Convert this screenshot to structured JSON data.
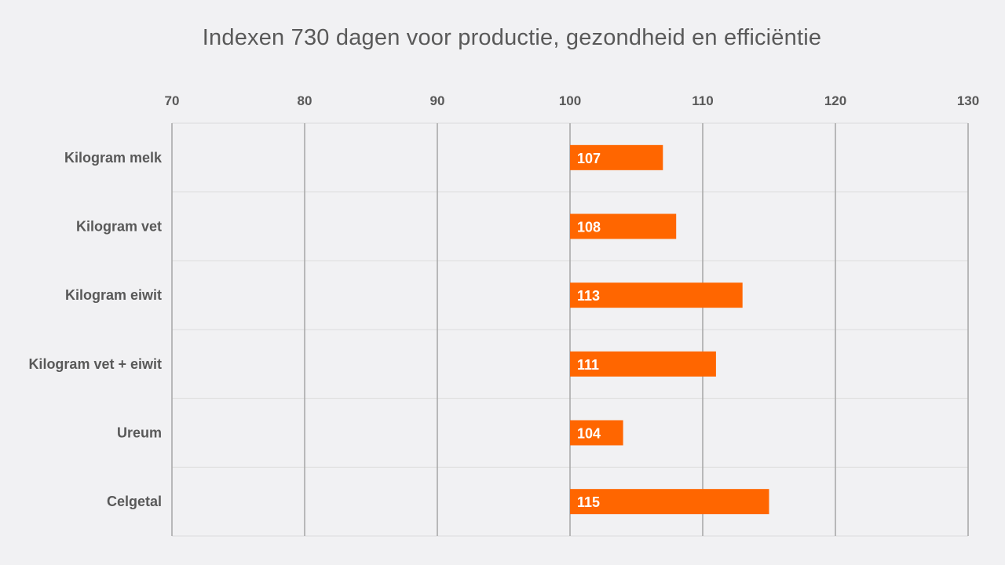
{
  "chart_data": {
    "type": "bar",
    "orientation": "horizontal",
    "title": "Indexen 730 dagen voor productie, gezondheid en efficiëntie",
    "xlabel": "",
    "ylabel": "",
    "xlim": [
      70,
      130
    ],
    "x_ticks": [
      "70",
      "80",
      "90",
      "100",
      "110",
      "120",
      "130"
    ],
    "axis_position": "top",
    "bar_origin": 100,
    "categories": [
      "Kilogram melk",
      "Kilogram vet",
      "Kilogram eiwit",
      "Kilogram vet + eiwit",
      "Ureum",
      "Celgetal"
    ],
    "values": [
      107,
      108,
      113,
      111,
      104,
      115
    ],
    "data_labels": [
      "107",
      "108",
      "113",
      "111",
      "104",
      "115"
    ],
    "bar_color": "#ff6600",
    "grid": true,
    "legend": "none"
  }
}
